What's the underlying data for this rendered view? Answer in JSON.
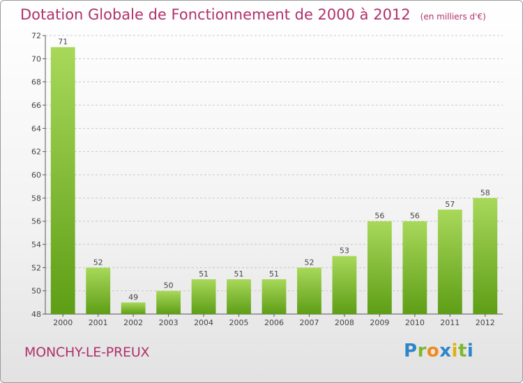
{
  "title": "Dotation Globale de Fonctionnement de 2000 à 2012",
  "unit_note": "(en milliers d'€)",
  "commune": "MONCHY-LE-PREUX",
  "logo": [
    "P",
    "r",
    "o",
    "x",
    "i",
    "t",
    "i"
  ],
  "colors": {
    "bar_top": "#a8d85a",
    "bar_bottom": "#5e9e16",
    "title": "#b0306b",
    "grid": "#c8c8c8"
  },
  "chart_data": {
    "type": "bar",
    "title": "Dotation Globale de Fonctionnement de 2000 à 2012",
    "subtitle": "(en milliers d'€)",
    "categories": [
      "2000",
      "2001",
      "2002",
      "2003",
      "2004",
      "2005",
      "2006",
      "2007",
      "2008",
      "2009",
      "2010",
      "2011",
      "2012"
    ],
    "values": [
      71,
      52,
      49,
      50,
      51,
      51,
      51,
      52,
      53,
      56,
      56,
      57,
      58
    ],
    "ylim": [
      48,
      72
    ],
    "yticks": [
      48,
      50,
      52,
      54,
      56,
      58,
      60,
      62,
      64,
      66,
      68,
      70,
      72
    ],
    "grid": true,
    "legend": "none"
  }
}
